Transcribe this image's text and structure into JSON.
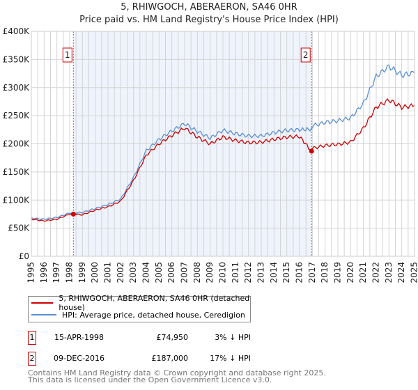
{
  "chart_data": {
    "type": "line",
    "title": "5, RHIWGOCH, ABERAERON, SA46 0HR",
    "subtitle": "Price paid vs. HM Land Registry's House Price Index (HPI)",
    "xlim": [
      1995,
      2025
    ],
    "ylim": [
      0,
      400000
    ],
    "x_ticks": [
      "1995",
      "1996",
      "1997",
      "1998",
      "1999",
      "2000",
      "2001",
      "2002",
      "2003",
      "2004",
      "2005",
      "2006",
      "2007",
      "2008",
      "2009",
      "2010",
      "2011",
      "2012",
      "2013",
      "2014",
      "2015",
      "2016",
      "2017",
      "2018",
      "2019",
      "2020",
      "2021",
      "2022",
      "2023",
      "2024",
      "2025"
    ],
    "y_ticks": [
      {
        "v": 0,
        "label": "£0"
      },
      {
        "v": 50000,
        "label": "£50K"
      },
      {
        "v": 100000,
        "label": "£100K"
      },
      {
        "v": 150000,
        "label": "£150K"
      },
      {
        "v": 200000,
        "label": "£200K"
      },
      {
        "v": 250000,
        "label": "£250K"
      },
      {
        "v": 300000,
        "label": "£300K"
      },
      {
        "v": 350000,
        "label": "£350K"
      },
      {
        "v": 400000,
        "label": "£400K"
      }
    ],
    "x": [
      1995,
      1996,
      1997,
      1998,
      1999,
      2000,
      2001,
      2002,
      2003,
      2004,
      2005,
      2006,
      2007,
      2008,
      2009,
      2010,
      2011,
      2012,
      2013,
      2014,
      2015,
      2016,
      2016.94,
      2017,
      2018,
      2019,
      2020,
      2021,
      2022,
      2023,
      2024,
      2025
    ],
    "series": [
      {
        "name": "5, RHIWGOCH, ABERAERON, SA46 0HR (detached house)",
        "color": "#cc0000",
        "values": [
          66000,
          63000,
          66000,
          74950,
          74000,
          82000,
          88000,
          98000,
          135000,
          180000,
          200000,
          215000,
          228000,
          212000,
          200000,
          212000,
          206000,
          202000,
          203000,
          208000,
          212000,
          213000,
          187000,
          192000,
          197000,
          199000,
          203000,
          228000,
          265000,
          278000,
          265000,
          268000
        ]
      },
      {
        "name": "HPI: Average price, detached house, Ceredigion",
        "color": "#5b8fd0",
        "values": [
          68000,
          66000,
          69000,
          77000,
          78000,
          85000,
          92000,
          102000,
          140000,
          188000,
          208000,
          223000,
          236000,
          222000,
          210000,
          224000,
          218000,
          214000,
          214000,
          220000,
          224000,
          225000,
          226000,
          232000,
          238000,
          241000,
          246000,
          272000,
          320000,
          338000,
          322000,
          326000
        ]
      }
    ],
    "sales": [
      {
        "id": "1",
        "x": 1998.29,
        "value": 74950
      },
      {
        "id": "2",
        "x": 2016.94,
        "value": 187000
      }
    ],
    "shaded_range": [
      1998.29,
      2016.94
    ]
  },
  "table": [
    {
      "id": "1",
      "date": "15-APR-1998",
      "price": "£74,950",
      "hpi": "3% ↓ HPI"
    },
    {
      "id": "2",
      "date": "09-DEC-2016",
      "price": "£187,000",
      "hpi": "17% ↓ HPI"
    }
  ],
  "footer": [
    "Contains HM Land Registry data © Crown copyright and database right 2025.",
    "This data is licensed under the Open Government Licence v3.0."
  ]
}
